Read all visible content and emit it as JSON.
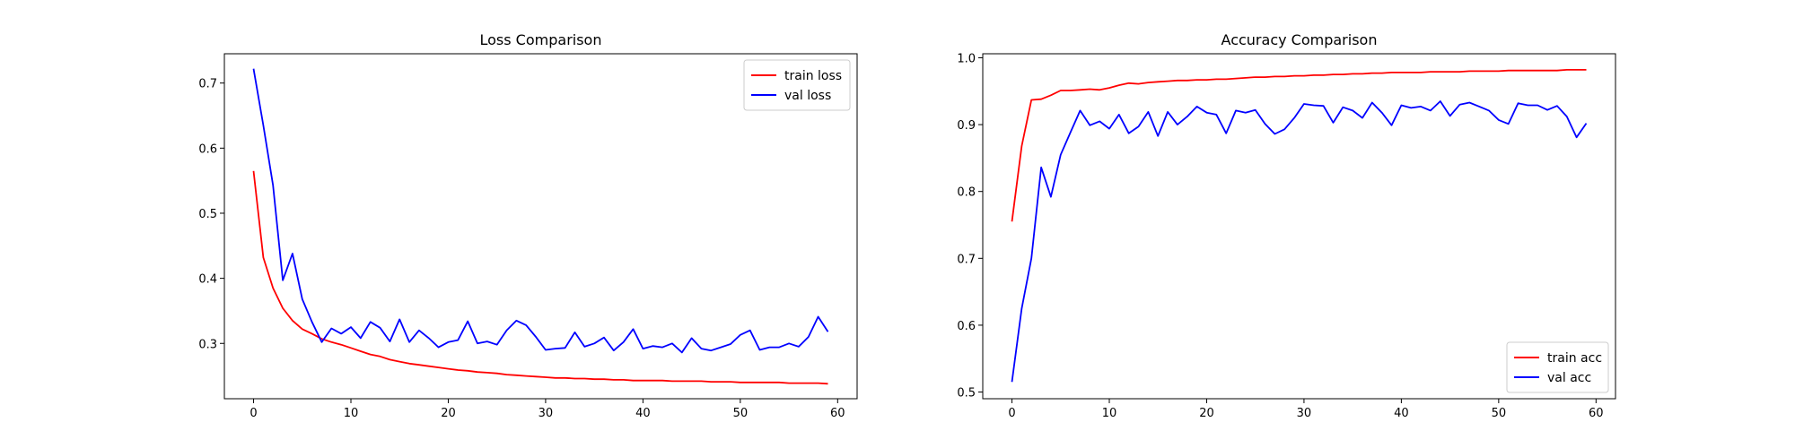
{
  "chart_data": [
    {
      "type": "line",
      "title": "Loss Comparison",
      "xlabel": "",
      "ylabel": "",
      "xlim": [
        -3,
        62
      ],
      "ylim": [
        0.215,
        0.745
      ],
      "xticks": [
        0,
        10,
        20,
        30,
        40,
        50,
        60
      ],
      "yticks": [
        0.3,
        0.4,
        0.5,
        0.6,
        0.7
      ],
      "ytick_labels": [
        "0.3",
        "0.4",
        "0.5",
        "0.6",
        "0.7"
      ],
      "grid": false,
      "legend": "top-right",
      "x": [
        0,
        1,
        2,
        3,
        4,
        5,
        6,
        7,
        8,
        9,
        10,
        11,
        12,
        13,
        14,
        15,
        16,
        17,
        18,
        19,
        20,
        21,
        22,
        23,
        24,
        25,
        26,
        27,
        28,
        29,
        30,
        31,
        32,
        33,
        34,
        35,
        36,
        37,
        38,
        39,
        40,
        41,
        42,
        43,
        44,
        45,
        46,
        47,
        48,
        49,
        50,
        51,
        52,
        53,
        54,
        55,
        56,
        57,
        58,
        59
      ],
      "series": [
        {
          "name": "train loss",
          "color": "#ff0000",
          "values": [
            0.565,
            0.432,
            0.385,
            0.354,
            0.335,
            0.322,
            0.315,
            0.307,
            0.302,
            0.298,
            0.293,
            0.288,
            0.283,
            0.28,
            0.275,
            0.272,
            0.269,
            0.267,
            0.265,
            0.263,
            0.261,
            0.259,
            0.258,
            0.256,
            0.255,
            0.254,
            0.252,
            0.251,
            0.25,
            0.249,
            0.248,
            0.247,
            0.247,
            0.246,
            0.246,
            0.245,
            0.245,
            0.244,
            0.244,
            0.243,
            0.243,
            0.243,
            0.243,
            0.242,
            0.242,
            0.242,
            0.242,
            0.241,
            0.241,
            0.241,
            0.24,
            0.24,
            0.24,
            0.24,
            0.24,
            0.239,
            0.239,
            0.239,
            0.239,
            0.238
          ]
        },
        {
          "name": "val loss",
          "color": "#0000ff",
          "values": [
            0.722,
            0.635,
            0.543,
            0.397,
            0.438,
            0.368,
            0.333,
            0.302,
            0.323,
            0.315,
            0.325,
            0.308,
            0.333,
            0.324,
            0.303,
            0.337,
            0.302,
            0.32,
            0.308,
            0.294,
            0.302,
            0.305,
            0.334,
            0.3,
            0.303,
            0.298,
            0.32,
            0.335,
            0.328,
            0.31,
            0.29,
            0.292,
            0.293,
            0.317,
            0.295,
            0.3,
            0.309,
            0.289,
            0.302,
            0.322,
            0.292,
            0.296,
            0.294,
            0.3,
            0.286,
            0.308,
            0.292,
            0.289,
            0.294,
            0.299,
            0.313,
            0.32,
            0.29,
            0.294,
            0.294,
            0.3,
            0.295,
            0.31,
            0.341,
            0.318
          ]
        }
      ]
    },
    {
      "type": "line",
      "title": "Accuracy Comparison",
      "xlabel": "",
      "ylabel": "",
      "xlim": [
        -3,
        62
      ],
      "ylim": [
        0.49,
        1.006
      ],
      "xticks": [
        0,
        10,
        20,
        30,
        40,
        50,
        60
      ],
      "yticks": [
        0.5,
        0.6,
        0.7,
        0.8,
        0.9,
        1.0
      ],
      "ytick_labels": [
        "0.5",
        "0.6",
        "0.7",
        "0.8",
        "0.9",
        "1.0"
      ],
      "grid": false,
      "legend": "bottom-right",
      "x": [
        0,
        1,
        2,
        3,
        4,
        5,
        6,
        7,
        8,
        9,
        10,
        11,
        12,
        13,
        14,
        15,
        16,
        17,
        18,
        19,
        20,
        21,
        22,
        23,
        24,
        25,
        26,
        27,
        28,
        29,
        30,
        31,
        32,
        33,
        34,
        35,
        36,
        37,
        38,
        39,
        40,
        41,
        42,
        43,
        44,
        45,
        46,
        47,
        48,
        49,
        50,
        51,
        52,
        53,
        54,
        55,
        56,
        57,
        58,
        59
      ],
      "series": [
        {
          "name": "train acc",
          "color": "#ff0000",
          "values": [
            0.755,
            0.868,
            0.937,
            0.938,
            0.944,
            0.951,
            0.951,
            0.952,
            0.953,
            0.952,
            0.955,
            0.959,
            0.962,
            0.961,
            0.963,
            0.964,
            0.965,
            0.966,
            0.966,
            0.967,
            0.967,
            0.968,
            0.968,
            0.969,
            0.97,
            0.971,
            0.971,
            0.972,
            0.972,
            0.973,
            0.973,
            0.974,
            0.974,
            0.975,
            0.975,
            0.976,
            0.976,
            0.977,
            0.977,
            0.978,
            0.978,
            0.978,
            0.978,
            0.979,
            0.979,
            0.979,
            0.979,
            0.98,
            0.98,
            0.98,
            0.98,
            0.981,
            0.981,
            0.981,
            0.981,
            0.981,
            0.981,
            0.982,
            0.982,
            0.982
          ]
        },
        {
          "name": "val acc",
          "color": "#0000ff",
          "values": [
            0.515,
            0.625,
            0.7,
            0.836,
            0.792,
            0.855,
            0.888,
            0.921,
            0.899,
            0.905,
            0.894,
            0.915,
            0.887,
            0.897,
            0.919,
            0.883,
            0.919,
            0.9,
            0.912,
            0.927,
            0.918,
            0.915,
            0.887,
            0.921,
            0.918,
            0.922,
            0.901,
            0.886,
            0.893,
            0.91,
            0.931,
            0.929,
            0.928,
            0.903,
            0.926,
            0.921,
            0.91,
            0.933,
            0.918,
            0.899,
            0.929,
            0.925,
            0.927,
            0.921,
            0.935,
            0.913,
            0.93,
            0.933,
            0.927,
            0.921,
            0.907,
            0.901,
            0.932,
            0.929,
            0.929,
            0.922,
            0.928,
            0.912,
            0.881,
            0.902
          ]
        }
      ]
    }
  ]
}
